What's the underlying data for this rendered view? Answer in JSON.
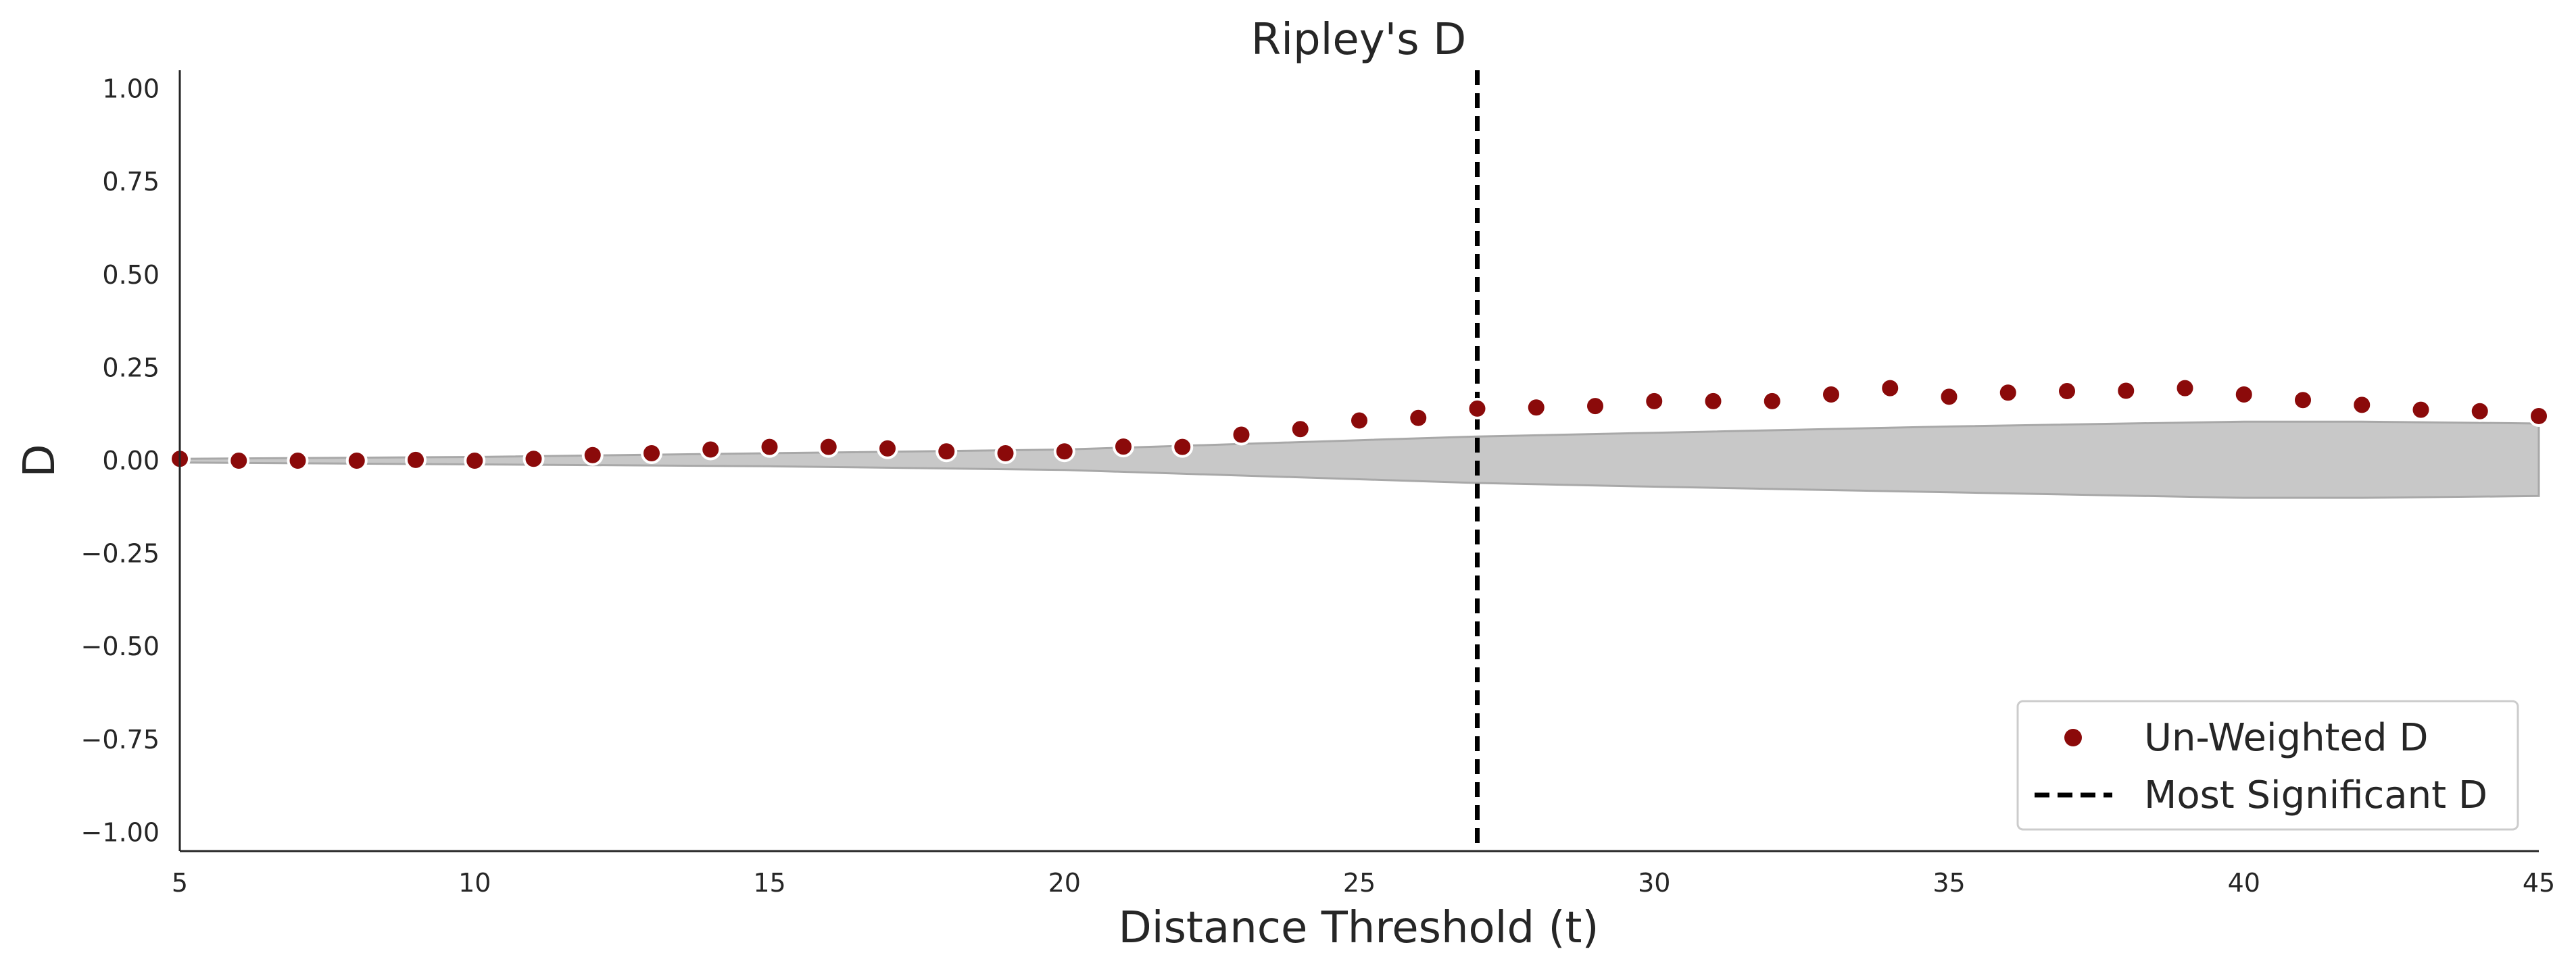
{
  "chart_data": {
    "type": "scatter",
    "title": "Ripley's D",
    "xlabel": "Distance Threshold (t)",
    "ylabel": "D",
    "xlim": [
      5,
      45
    ],
    "ylim": [
      -1.05,
      1.05
    ],
    "xticks": [
      5,
      10,
      15,
      20,
      25,
      30,
      35,
      40,
      45
    ],
    "yticks": [
      -1.0,
      -0.75,
      -0.5,
      -0.25,
      0.0,
      0.25,
      0.5,
      0.75,
      1.0
    ],
    "xtick_labels": [
      "5",
      "10",
      "15",
      "20",
      "25",
      "30",
      "35",
      "40",
      "45"
    ],
    "ytick_labels": [
      "−1.00",
      "−0.75",
      "−0.50",
      "−0.25",
      "0.00",
      "0.25",
      "0.50",
      "0.75",
      "1.00"
    ],
    "grid": false,
    "legend_position": "bottom-right",
    "series": [
      {
        "name": "Un-Weighted D",
        "kind": "points",
        "color": "#8b0a0a",
        "x": [
          5,
          6,
          7,
          8,
          9,
          10,
          11,
          12,
          13,
          14,
          15,
          16,
          17,
          18,
          19,
          20,
          21,
          22,
          23,
          24,
          25,
          26,
          27,
          28,
          29,
          30,
          31,
          32,
          33,
          34,
          35,
          36,
          37,
          38,
          39,
          40,
          41,
          42,
          43,
          44,
          45
        ],
        "y": [
          0.005,
          0.0,
          0.0,
          0.0,
          0.002,
          0.0,
          0.005,
          0.015,
          0.02,
          0.03,
          0.037,
          0.037,
          0.033,
          0.025,
          0.02,
          0.025,
          0.038,
          0.037,
          0.07,
          0.085,
          0.108,
          0.115,
          0.14,
          0.143,
          0.147,
          0.16,
          0.16,
          0.16,
          0.178,
          0.195,
          0.172,
          0.183,
          0.187,
          0.188,
          0.195,
          0.178,
          0.163,
          0.15,
          0.137,
          0.133,
          0.12
        ]
      },
      {
        "name": "Most Significant D",
        "kind": "vline",
        "color": "#000000",
        "x": 27
      }
    ],
    "envelope": {
      "color": "#c8c8c8",
      "x": [
        5,
        10,
        15,
        20,
        25,
        27,
        30,
        35,
        40,
        42,
        45
      ],
      "upper": [
        0.005,
        0.01,
        0.02,
        0.03,
        0.055,
        0.065,
        0.075,
        0.092,
        0.105,
        0.105,
        0.1
      ],
      "lower": [
        -0.005,
        -0.01,
        -0.015,
        -0.025,
        -0.05,
        -0.06,
        -0.07,
        -0.085,
        -0.1,
        -0.1,
        -0.095
      ]
    }
  }
}
